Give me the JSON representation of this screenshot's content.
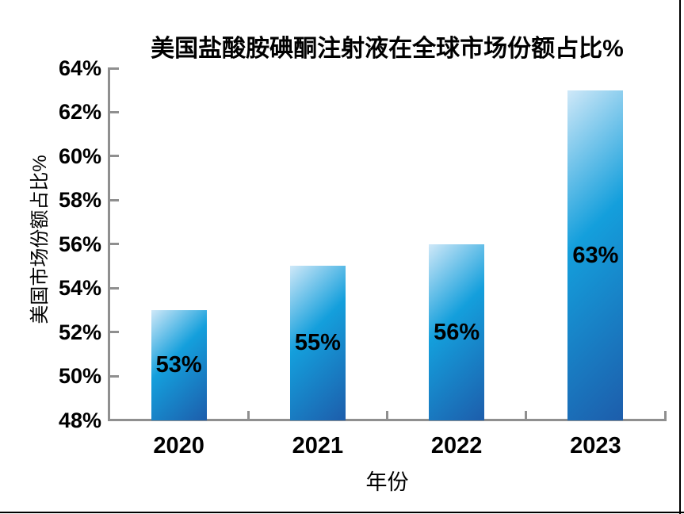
{
  "title": "美国盐酸胺碘酮注射液在全球市场份额占比%",
  "chart_data": {
    "type": "bar",
    "title": "美国盐酸胺碘酮注射液在全球市场份额占比%",
    "categories": [
      "2020",
      "2021",
      "2022",
      "2023"
    ],
    "values": [
      53,
      55,
      56,
      63
    ],
    "data_labels": [
      "53%",
      "55%",
      "56%",
      "63%"
    ],
    "xlabel": "年份",
    "ylabel": "美国市场份额占比%",
    "ylim": [
      48,
      64
    ],
    "ytick_step": 2,
    "ytick_labels": [
      "48%",
      "50%",
      "52%",
      "54%",
      "56%",
      "58%",
      "60%",
      "62%",
      "64%"
    ],
    "grid": false,
    "legend": false,
    "data_label_position": "center",
    "colors": {
      "bar_gradient_highlight": "#cfe8f8",
      "bar_gradient_mid": "#149fdc",
      "bar_gradient_dark": "#1d5dab",
      "axis_line": "#8f8f8f",
      "text": "#000000",
      "background": "#ffffff"
    }
  }
}
